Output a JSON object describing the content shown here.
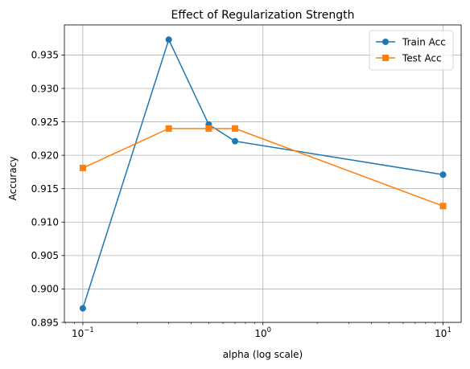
{
  "chart_data": {
    "type": "line",
    "title": "Effect of Regularization Strength",
    "xlabel": "alpha (log scale)",
    "ylabel": "Accuracy",
    "xscale": "log",
    "xlim": [
      0.079,
      12.6
    ],
    "ylim": [
      0.895,
      0.9395
    ],
    "grid": true,
    "legend": {
      "position": "top-right"
    },
    "x_ticks": [
      {
        "value": 0.1,
        "base": "10",
        "exp": "−1"
      },
      {
        "value": 1,
        "base": "10",
        "exp": "0"
      },
      {
        "value": 10,
        "base": "10",
        "exp": "1"
      }
    ],
    "y_ticks": [
      "0.895",
      "0.900",
      "0.905",
      "0.910",
      "0.915",
      "0.920",
      "0.925",
      "0.930",
      "0.935"
    ],
    "x": [
      0.1,
      0.3,
      0.5,
      0.7,
      10
    ],
    "series": [
      {
        "name": "Train Acc",
        "color": "#1f77b4",
        "marker": "circle",
        "values": [
          0.8971,
          0.9373,
          0.9246,
          0.9221,
          0.9171
        ]
      },
      {
        "name": "Test Acc",
        "color": "#ff7f0e",
        "marker": "square",
        "values": [
          0.9181,
          0.924,
          0.924,
          0.924,
          0.9124
        ]
      }
    ]
  }
}
